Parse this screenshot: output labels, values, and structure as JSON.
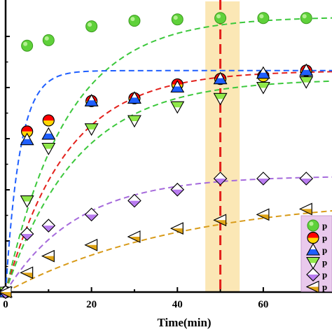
{
  "chart_data": {
    "type": "scatter",
    "title": "",
    "xlabel": "Time(min)",
    "ylabel": "",
    "xlim": [
      0,
      76
    ],
    "ylim": [
      0,
      1.05
    ],
    "x_ticks": [
      0,
      20,
      40,
      60
    ],
    "grid": false,
    "legend_position": "bottom-right",
    "highlight_band": {
      "x": [
        46.5,
        54.5
      ],
      "color": "#fbe7b5"
    },
    "reference_line": {
      "x": 50,
      "color": "#e3211c",
      "style": "dashed"
    },
    "series": [
      {
        "name": "p",
        "marker": "circle-green",
        "colors": [
          "#5fd13a",
          "#3a9a1e"
        ],
        "x": [
          0,
          5,
          10,
          20,
          30,
          40,
          50,
          60,
          70
        ],
        "y": [
          0.0,
          0.89,
          0.91,
          0.96,
          0.98,
          0.985,
          0.99,
          0.99,
          0.99
        ],
        "fit": {
          "color": "#3cc83c",
          "start": 0.0,
          "plateau": 0.995,
          "rate": 0.07
        }
      },
      {
        "name": "p",
        "marker": "circle-half-red-yellow",
        "colors": [
          "#ff0000",
          "#ffd700"
        ],
        "x": [
          0,
          5,
          10,
          20,
          30,
          40,
          50,
          60,
          70
        ],
        "y": [
          0.0,
          0.58,
          0.62,
          0.69,
          0.7,
          0.75,
          0.77,
          0.78,
          0.8
        ],
        "fit": {
          "color": "#e3211c",
          "start": 0.0,
          "plateau": 0.8,
          "rate": 0.07
        }
      },
      {
        "name": "p",
        "marker": "triangle-up-blue",
        "colors": [
          "#1f5fff",
          "#ffffff"
        ],
        "x": [
          0,
          5,
          10,
          20,
          30,
          40,
          50,
          60,
          70
        ],
        "y": [
          0.0,
          0.55,
          0.57,
          0.69,
          0.7,
          0.74,
          0.77,
          0.79,
          0.8
        ],
        "fit": {
          "color": "#1f5fff",
          "start": 0.0,
          "plateau": 0.8,
          "rate": 0.3
        }
      },
      {
        "name": "p",
        "marker": "triangle-down-green",
        "colors": [
          "#8fe84a",
          "#ffffff"
        ],
        "x": [
          0,
          5,
          10,
          20,
          30,
          40,
          50,
          60,
          70
        ],
        "y": [
          0.0,
          0.33,
          0.52,
          0.59,
          0.62,
          0.67,
          0.7,
          0.74,
          0.76
        ],
        "fit": {
          "color": "#3cc83c",
          "start": 0.0,
          "plateau": 0.77,
          "rate": 0.06
        }
      },
      {
        "name": "p",
        "marker": "diamond-purple",
        "colors": [
          "#b97cf0",
          "#ffffff"
        ],
        "x": [
          0,
          5,
          10,
          20,
          30,
          40,
          50,
          60,
          70
        ],
        "y": [
          0.0,
          0.21,
          0.24,
          0.28,
          0.33,
          0.37,
          0.41,
          0.41,
          0.41
        ],
        "fit": {
          "color": "#a66bdc",
          "start": 0.0,
          "plateau": 0.42,
          "rate": 0.06
        }
      },
      {
        "name": "p",
        "marker": "triangle-left-gold",
        "colors": [
          "#e0a516",
          "#ffffff"
        ],
        "x": [
          0,
          5,
          10,
          20,
          30,
          40,
          50,
          60,
          70
        ],
        "y": [
          0.0,
          0.07,
          0.13,
          0.17,
          0.2,
          0.23,
          0.26,
          0.28,
          0.3
        ],
        "fit": {
          "color": "#d89b1a",
          "start": 0.0,
          "plateau": 0.35,
          "rate": 0.024
        }
      }
    ]
  }
}
